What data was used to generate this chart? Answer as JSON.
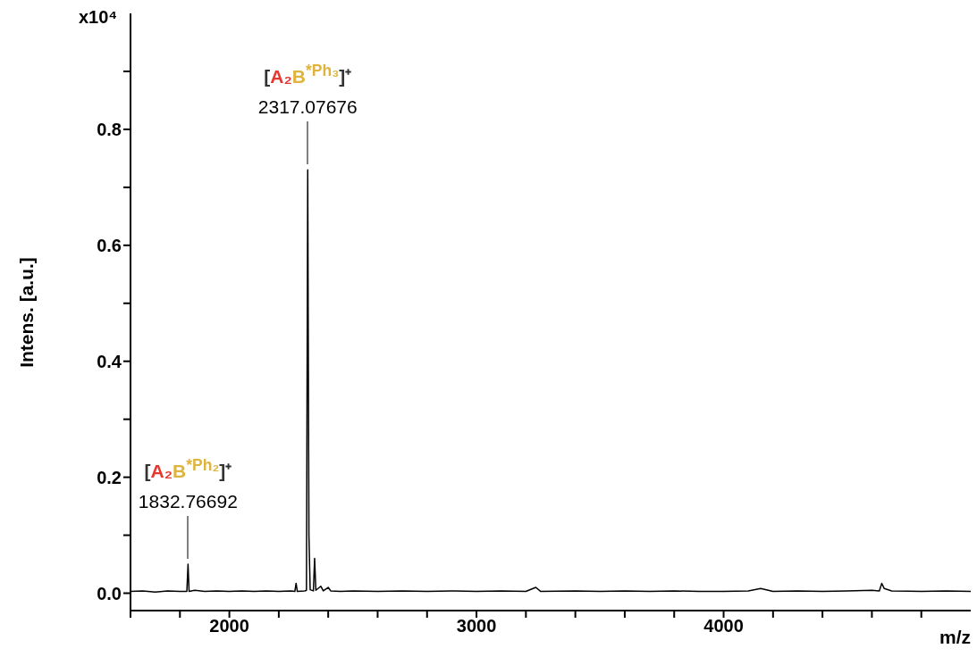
{
  "chart_data": {
    "type": "line",
    "xlabel": "m/z",
    "ylabel": "Intens. [a.u.]",
    "annotations": [
      "x10⁴",
      "[A₂B$^{*Ph₂}$]⁺",
      {
        "text": "1832.76692",
        "x": 1832.77,
        "y": 0.05
      },
      "[A₂B$^{*Ph₃}$]⁺",
      {
        "text": "2317.07676",
        "x": 2317.08,
        "y": 0.73
      }
    ],
    "xlim": [
      1600,
      5000
    ],
    "xticks": [
      {
        "value": 1600,
        "label": null
      },
      {
        "value": 1800,
        "label": null
      },
      2000,
      {
        "value": 2200,
        "label": null
      },
      {
        "value": 2400,
        "label": null
      },
      {
        "value": 2600,
        "label": null
      },
      {
        "value": 2800,
        "label": null
      },
      3000,
      {
        "value": 3200,
        "label": null
      },
      {
        "value": 3400,
        "label": null
      },
      {
        "value": 3600,
        "label": null
      },
      {
        "value": 3800,
        "label": null
      },
      4000,
      {
        "value": 4200,
        "label": null
      },
      {
        "value": 4400,
        "label": null
      },
      {
        "value": 4600,
        "label": null
      },
      {
        "value": 4800,
        "label": null
      }
    ],
    "ylim": [
      -0.03,
      1.0
    ],
    "yticks": [
      {
        "value": 0,
        "label": "0.0"
      },
      {
        "value": 0.1,
        "label": null
      },
      {
        "value": 0.2,
        "label": "0.2"
      },
      {
        "value": 0.3,
        "label": null
      },
      {
        "value": 0.4,
        "label": "0.4"
      },
      {
        "value": 0.5,
        "label": null
      },
      {
        "value": 0.6,
        "label": "0.6"
      },
      {
        "value": 0.7,
        "label": null
      },
      {
        "value": 0.8,
        "label": "0.8"
      },
      {
        "value": 0.9,
        "label": null
      }
    ],
    "grid": false,
    "marker": "none",
    "line_style": "solid",
    "series": [
      {
        "color": "#000000",
        "x": [
          1600,
          1650,
          1700,
          1750,
          1800,
          1828,
          1832.8,
          1837,
          1860,
          1900,
          1950,
          2000,
          2050,
          2100,
          2150,
          2200,
          2250,
          2265,
          2270,
          2275,
          2305,
          2312,
          2317.1,
          2322,
          2327,
          2340,
          2345,
          2350,
          2370,
          2380,
          2400,
          2410,
          2450,
          2500,
          2600,
          2700,
          2800,
          2900,
          3000,
          3100,
          3200,
          3240,
          3260,
          3400,
          3500,
          3600,
          3700,
          3800,
          3900,
          4000,
          4100,
          4150,
          4200,
          4300,
          4400,
          4500,
          4600,
          4630,
          4640,
          4650,
          4680,
          4800,
          4900,
          5000
        ],
        "values": [
          0.003,
          0.004,
          0.002,
          0.004,
          0.003,
          0.003,
          0.05,
          0.003,
          0.005,
          0.003,
          0.004,
          0.003,
          0.004,
          0.003,
          0.004,
          0.003,
          0.004,
          0.003,
          0.017,
          0.003,
          0.004,
          0.005,
          0.73,
          0.1,
          0.006,
          0.004,
          0.06,
          0.005,
          0.012,
          0.004,
          0.01,
          0.004,
          0.003,
          0.004,
          0.003,
          0.004,
          0.003,
          0.004,
          0.003,
          0.004,
          0.003,
          0.01,
          0.003,
          0.004,
          0.003,
          0.004,
          0.003,
          0.004,
          0.003,
          0.003,
          0.004,
          0.008,
          0.003,
          0.004,
          0.003,
          0.004,
          0.005,
          0.004,
          0.017,
          0.008,
          0.004,
          0.003,
          0.004,
          0.003
        ]
      }
    ]
  }
}
